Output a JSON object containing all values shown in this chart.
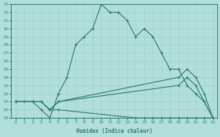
{
  "xlabel": "Humidex (Indice chaleur)",
  "bg_color": "#b2dfdb",
  "line_color": "#2e7d72",
  "grid_color": "#9ececa",
  "xlim": [
    -0.5,
    23.5
  ],
  "ylim": [
    19,
    33
  ],
  "yticks": [
    19,
    20,
    21,
    22,
    23,
    24,
    25,
    26,
    27,
    28,
    29,
    30,
    31,
    32,
    33
  ],
  "xticks": [
    0,
    1,
    2,
    3,
    4,
    5,
    6,
    7,
    8,
    9,
    10,
    11,
    12,
    13,
    14,
    15,
    16,
    17,
    18,
    19,
    20,
    21,
    22,
    23
  ],
  "line1_x": [
    0,
    1,
    2,
    3,
    4,
    5,
    6,
    7,
    8,
    9,
    10,
    11,
    12,
    13,
    14,
    15,
    16,
    17,
    18,
    19,
    20,
    21,
    22,
    23
  ],
  "line1_y": [
    21,
    21,
    21,
    20,
    19,
    22,
    24,
    28,
    29,
    30,
    33,
    32,
    32,
    31,
    29,
    30,
    29,
    27,
    25,
    25,
    23,
    22,
    21,
    19
  ],
  "line2_x": [
    0,
    2,
    3,
    4,
    5,
    19,
    20,
    21,
    22,
    23
  ],
  "line2_y": [
    21,
    21,
    21,
    20,
    21,
    24,
    25,
    24,
    22,
    19
  ],
  "line3_x": [
    0,
    2,
    3,
    4,
    5,
    19,
    20,
    21,
    22,
    23
  ],
  "line3_y": [
    21,
    21,
    21,
    20,
    21,
    23,
    24,
    23,
    21,
    19
  ],
  "line4_x": [
    0,
    2,
    3,
    4,
    5,
    14,
    15,
    16,
    17,
    18,
    19,
    20,
    21,
    22,
    23
  ],
  "line4_y": [
    21,
    21,
    21,
    20,
    20,
    19,
    19,
    19,
    19,
    19,
    19,
    19,
    19,
    19,
    19
  ]
}
